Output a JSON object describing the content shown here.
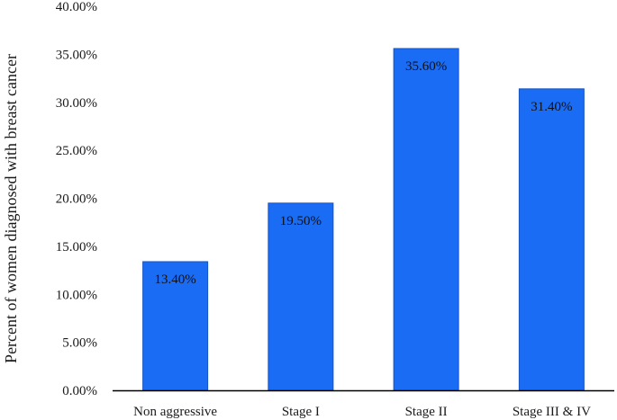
{
  "chart_data": {
    "type": "bar",
    "categories": [
      "Non aggressive",
      "Stage I",
      "Stage II",
      "Stage III & IV"
    ],
    "values": [
      13.4,
      19.5,
      35.6,
      31.4
    ],
    "data_labels": [
      "13.40%",
      "19.50%",
      "35.60%",
      "31.40%"
    ],
    "ylabel": "Percent  of women diagnosed with breast cancer",
    "xlabel": "",
    "ylim": [
      0,
      40
    ],
    "y_ticks": [
      0,
      5,
      10,
      15,
      20,
      25,
      30,
      35,
      40
    ],
    "y_tick_labels": [
      "0.00%",
      "5.00%",
      "10.00%",
      "15.00%",
      "20.00%",
      "25.00%",
      "30.00%",
      "35.00%",
      "40.00%"
    ],
    "grid": false,
    "legend": "none",
    "bar_color": "#1a6cf5",
    "bar_edge_color": "#1553c4"
  }
}
